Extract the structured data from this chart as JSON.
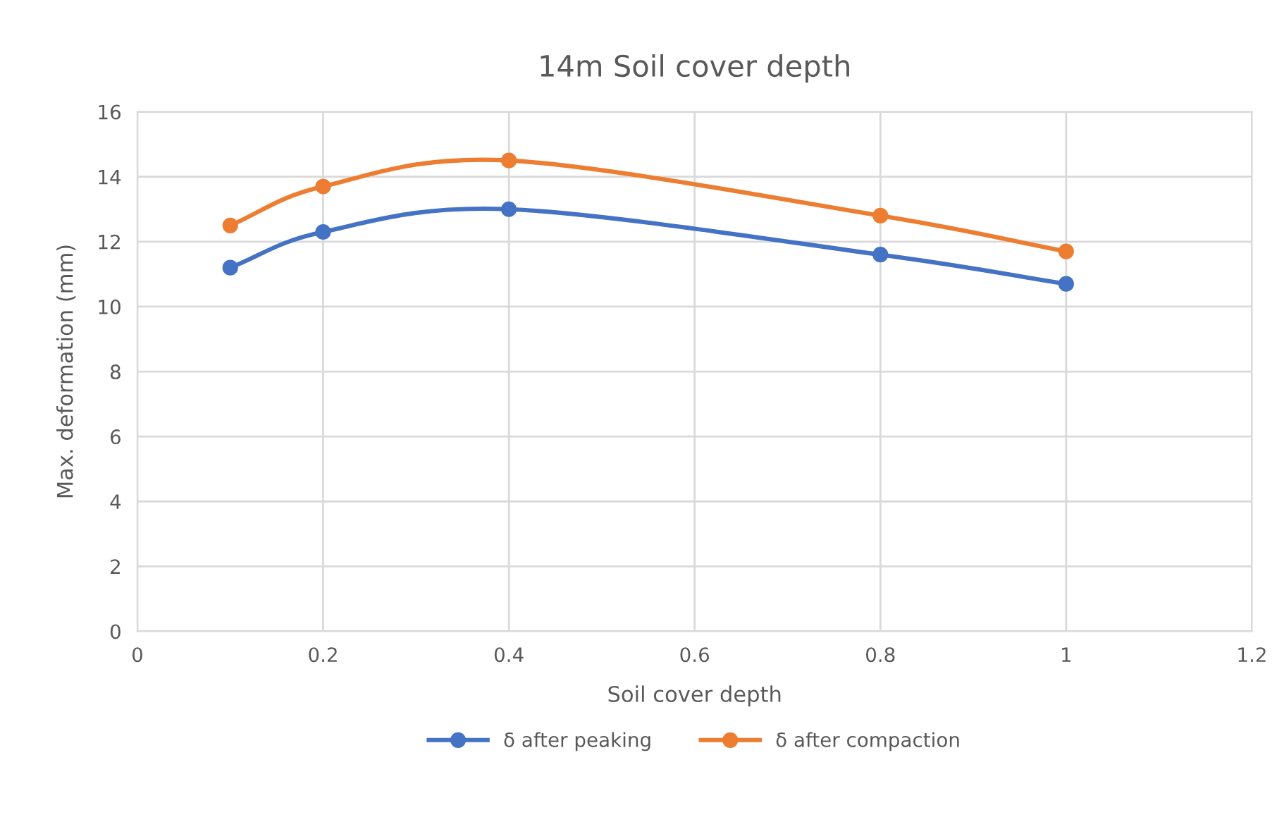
{
  "chart_data": {
    "type": "line",
    "title": "14m Soil cover depth",
    "xlabel": "Soil cover depth",
    "ylabel": "Max. deformation (mm)",
    "x": [
      0.1,
      0.2,
      0.4,
      0.8,
      1
    ],
    "series": [
      {
        "name": "δ after peaking",
        "color": "#4472c4",
        "values": [
          11.2,
          12.3,
          13.0,
          11.6,
          10.7
        ]
      },
      {
        "name": "δ after compaction",
        "color": "#ed7d31",
        "values": [
          12.5,
          13.7,
          14.5,
          12.8,
          11.7
        ]
      }
    ],
    "xlim": [
      0,
      1.2
    ],
    "xticks": [
      0,
      0.2,
      0.4,
      0.6,
      0.8,
      1,
      1.2
    ],
    "ylim": [
      0,
      16
    ],
    "yticks": [
      0,
      2,
      4,
      6,
      8,
      10,
      12,
      14,
      16
    ],
    "grid": true,
    "legend": "bottom",
    "marker": "circle",
    "line_style": "solid"
  }
}
